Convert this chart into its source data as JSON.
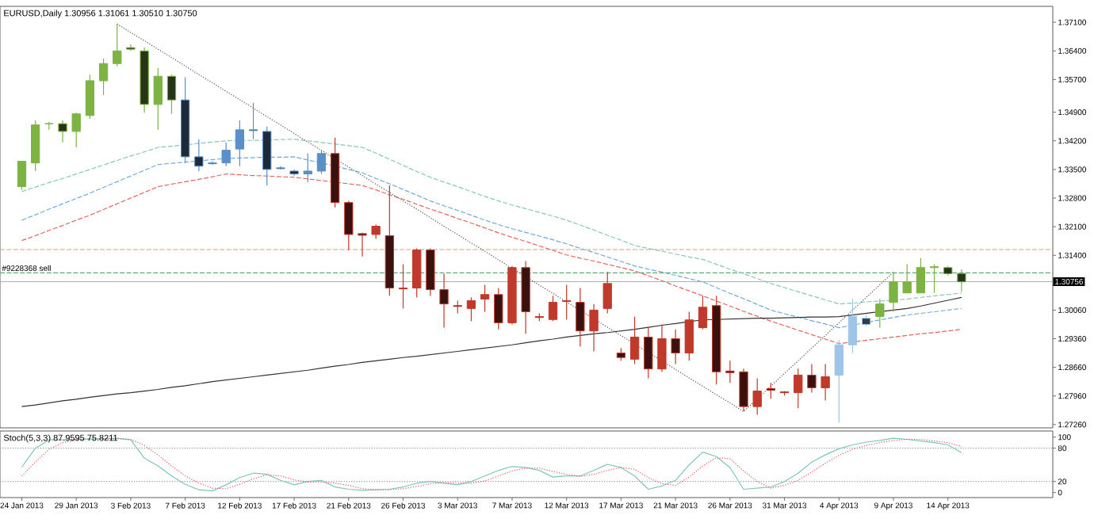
{
  "chart_data": [
    {
      "type": "candlestick",
      "title": "EURUSD,Daily 1.30956 1.31061 1.30510 1.30750",
      "categories": [
        null,
        null,
        null,
        null,
        null,
        null,
        null,
        null,
        null,
        null,
        null,
        null,
        null,
        null,
        null,
        null,
        null,
        null,
        null,
        null,
        null,
        null,
        null,
        null,
        null,
        null,
        null,
        null,
        null,
        null,
        null,
        null,
        null,
        null,
        null,
        null,
        null,
        null,
        null,
        null,
        null,
        null,
        null,
        null,
        null,
        null,
        null,
        null,
        null,
        null,
        null,
        null,
        null,
        null,
        null,
        null,
        null,
        null,
        null,
        null,
        null,
        null,
        null,
        null,
        null,
        null,
        null,
        null,
        null,
        null
      ],
      "ohlc": [
        [
          1.3308,
          1.3371,
          1.33,
          1.337
        ],
        [
          1.3366,
          1.347,
          1.3346,
          1.3459
        ],
        [
          1.3462,
          1.3466,
          1.3447,
          1.3462
        ],
        [
          1.3462,
          1.347,
          1.3416,
          1.3443
        ],
        [
          1.3443,
          1.3489,
          1.3404,
          1.3486
        ],
        [
          1.3482,
          1.3582,
          1.3474,
          1.3567
        ],
        [
          1.3567,
          1.3621,
          1.3532,
          1.3609
        ],
        [
          1.3609,
          1.3706,
          1.3602,
          1.364
        ],
        [
          1.3648,
          1.3656,
          1.364,
          1.3644
        ],
        [
          1.364,
          1.3648,
          1.3489,
          1.3509
        ],
        [
          1.3509,
          1.3598,
          1.3447,
          1.3578
        ],
        [
          1.3578,
          1.3582,
          1.3486,
          1.352
        ],
        [
          1.352,
          1.3575,
          1.3366,
          1.3381
        ],
        [
          1.3381,
          1.3424,
          1.3346,
          1.3358
        ],
        [
          1.3366,
          1.337,
          1.3362,
          1.3364
        ],
        [
          1.3366,
          1.3416,
          1.3358,
          1.3397
        ],
        [
          1.34,
          1.347,
          1.3358,
          1.3447
        ],
        [
          1.3447,
          1.3513,
          1.3424,
          1.3445
        ],
        [
          1.3443,
          1.3455,
          1.3311,
          1.335
        ],
        [
          1.3354,
          1.3358,
          1.335,
          1.3352
        ],
        [
          1.3346,
          1.335,
          1.3335,
          1.3339
        ],
        [
          1.3339,
          1.3389,
          1.3319,
          1.3346
        ],
        [
          1.3346,
          1.3397,
          1.3339,
          1.3389
        ],
        [
          1.3389,
          1.3428,
          1.3257,
          1.3269
        ],
        [
          1.3269,
          1.3273,
          1.3153,
          1.3191
        ],
        [
          1.3193,
          1.3195,
          1.3137,
          1.3189
        ],
        [
          1.3191,
          1.3215,
          1.318,
          1.3211
        ],
        [
          1.3188,
          1.3311,
          1.3041,
          1.306
        ],
        [
          1.306,
          1.3118,
          1.301,
          1.3058
        ],
        [
          1.306,
          1.3157,
          1.3037,
          1.3153
        ],
        [
          1.3153,
          1.3157,
          1.3041,
          1.3056
        ],
        [
          1.3056,
          1.3095,
          1.2963,
          1.3021
        ],
        [
          1.3017,
          1.3029,
          1.2998,
          1.3015
        ],
        [
          1.301,
          1.3037,
          1.2979,
          1.3029
        ],
        [
          1.3033,
          1.3068,
          1.3002,
          1.3044
        ],
        [
          1.3044,
          1.306,
          1.2959,
          1.2975
        ],
        [
          1.2975,
          1.3114,
          1.2971,
          1.311
        ],
        [
          1.311,
          1.3126,
          1.2948,
          1.3002
        ],
        [
          1.299,
          1.2998,
          1.2979,
          1.2988
        ],
        [
          1.2983,
          1.3041,
          1.2979,
          1.3025
        ],
        [
          1.3029,
          1.3068,
          1.2983,
          1.3027
        ],
        [
          1.3025,
          1.306,
          1.2917,
          1.2955
        ],
        [
          1.2955,
          1.3021,
          1.2905,
          1.3006
        ],
        [
          1.301,
          1.3099,
          1.2998,
          1.3071
        ],
        [
          1.2901,
          1.2913,
          1.2882,
          1.289
        ],
        [
          1.2886,
          1.299,
          1.2874,
          1.294
        ],
        [
          1.294,
          1.2963,
          1.2839,
          1.2862
        ],
        [
          1.2862,
          1.2971,
          1.2855,
          1.2936
        ],
        [
          1.2936,
          1.2959,
          1.2874,
          1.2901
        ],
        [
          1.2901,
          1.3002,
          1.2882,
          1.2982
        ],
        [
          1.2963,
          1.3041,
          1.2959,
          1.3013
        ],
        [
          1.3017,
          1.3041,
          1.2824,
          1.2855
        ],
        [
          1.2857,
          1.2882,
          1.2828,
          1.2853
        ],
        [
          1.2855,
          1.2863,
          1.2758,
          1.277
        ],
        [
          1.277,
          1.2839,
          1.275,
          1.2808
        ],
        [
          1.2814,
          1.2828,
          1.2789,
          1.281
        ],
        [
          1.2806,
          1.2808,
          1.2797,
          1.2804
        ],
        [
          1.2804,
          1.2863,
          1.2766,
          1.2847
        ],
        [
          1.2847,
          1.2874,
          1.2804,
          1.2816
        ],
        [
          1.2816,
          1.2874,
          1.2785,
          1.2843
        ],
        [
          1.2847,
          1.2932,
          1.2731,
          1.2921
        ],
        [
          1.2921,
          1.3033,
          1.2901,
          1.299
        ],
        [
          1.2986,
          1.2994,
          1.2967,
          1.2971
        ],
        [
          1.299,
          1.3033,
          1.2963,
          1.3021
        ],
        [
          1.3025,
          1.3099,
          1.3002,
          1.3075
        ],
        [
          1.3048,
          1.3118,
          1.3048,
          1.3075
        ],
        [
          1.3048,
          1.3133,
          1.3048,
          1.311
        ],
        [
          1.311,
          1.3118,
          1.3048,
          1.3112
        ],
        [
          1.311,
          1.3114,
          1.3091,
          1.3095
        ],
        [
          1.30956,
          1.31061,
          1.3051,
          1.3075
        ]
      ],
      "colors": [
        "#7cb342",
        "#7cb342",
        "#7cb342",
        "#7cb342",
        "#7cb342",
        "#7cb342",
        "#7cb342",
        "#7cb342",
        "#7cb342",
        "#7cb342",
        "#7cb342",
        "#7cb342",
        "#5b8fc7",
        "#5b8fc7",
        "#5b8fc7",
        "#5b8fc7",
        "#5b8fc7",
        "#5b8fc7",
        "#5b8fc7",
        "#5b8fc7",
        "#5b8fc7",
        "#5b8fc7",
        "#5b8fc7",
        "#c0392b",
        "#c0392b",
        "#c0392b",
        "#c0392b",
        "#c0392b",
        "#c0392b",
        "#c0392b",
        "#c0392b",
        "#c0392b",
        "#c0392b",
        "#c0392b",
        "#c0392b",
        "#c0392b",
        "#c0392b",
        "#c0392b",
        "#c0392b",
        "#c0392b",
        "#c0392b",
        "#c0392b",
        "#c0392b",
        "#c0392b",
        "#c0392b",
        "#c0392b",
        "#c0392b",
        "#c0392b",
        "#c0392b",
        "#c0392b",
        "#c0392b",
        "#c0392b",
        "#c0392b",
        "#c0392b",
        "#c0392b",
        "#c0392b",
        "#c0392b",
        "#c0392b",
        "#c0392b",
        "#c0392b",
        "#9ec5e8",
        "#9ec5e8",
        "#9ec5e8",
        "#7cb342",
        "#7cb342",
        "#7cb342",
        "#7cb342",
        "#7cb342",
        "#7cb342",
        "#7cb342"
      ],
      "series": [
        {
          "type": "line",
          "color": "#8cc4bc",
          "line_style": "dashed",
          "values": [
            1.3296,
            1.3307,
            1.3318,
            1.3328,
            1.3339,
            1.335,
            1.3361,
            1.3372,
            1.3383,
            1.3393,
            1.3404,
            1.3407,
            1.341,
            1.3414,
            1.3417,
            1.342,
            1.3421,
            1.3421,
            1.3422,
            1.3423,
            1.3424,
            1.342,
            1.3416,
            1.3412,
            1.3408,
            1.3404,
            1.339,
            1.3375,
            1.336,
            1.3345,
            1.3331,
            1.3319,
            1.3308,
            1.3296,
            1.3284,
            1.3273,
            1.3263,
            1.3254,
            1.3245,
            1.3236,
            1.3226,
            1.3214,
            1.3202,
            1.3189,
            1.3177,
            1.3164,
            1.3157,
            1.315,
            1.3143,
            1.3136,
            1.313,
            1.3118,
            1.3106,
            1.3095,
            1.3083,
            1.3071,
            1.3061,
            1.3051,
            1.3041,
            1.3031,
            1.3021,
            1.3023,
            1.3026,
            1.3028,
            1.303,
            1.3033,
            1.3037,
            1.3041,
            1.3044,
            1.3048
          ]
        },
        {
          "type": "line",
          "color": "#6fa8dc",
          "line_style": "dashed",
          "values": [
            1.3226,
            1.3239,
            1.3253,
            1.3266,
            1.3279,
            1.3292,
            1.3306,
            1.332,
            1.3334,
            1.3348,
            1.3362,
            1.3365,
            1.3368,
            1.3371,
            1.3374,
            1.3377,
            1.3378,
            1.3379,
            1.338,
            1.338,
            1.3381,
            1.3373,
            1.3366,
            1.3358,
            1.335,
            1.3342,
            1.3328,
            1.3315,
            1.3301,
            1.3287,
            1.3273,
            1.3261,
            1.325,
            1.3238,
            1.3226,
            1.3215,
            1.3205,
            1.3196,
            1.3187,
            1.3178,
            1.3168,
            1.3157,
            1.3147,
            1.3136,
            1.3125,
            1.3114,
            1.3106,
            1.3099,
            1.3091,
            1.3083,
            1.3075,
            1.3061,
            1.3047,
            1.3034,
            1.302,
            1.3006,
            1.2997,
            1.2989,
            1.298,
            1.2972,
            1.2963,
            1.2969,
            1.2976,
            1.2982,
            1.2988,
            1.2994,
            1.2998,
            1.3002,
            1.3006,
            1.301
          ]
        },
        {
          "type": "line",
          "color": "#e06666",
          "line_style": "dashed",
          "values": [
            1.3176,
            1.3188,
            1.3201,
            1.3213,
            1.3226,
            1.3238,
            1.3252,
            1.3266,
            1.328,
            1.3294,
            1.3308,
            1.3314,
            1.332,
            1.3326,
            1.3332,
            1.3339,
            1.3337,
            1.3335,
            1.3334,
            1.3332,
            1.3331,
            1.3327,
            1.3323,
            1.3319,
            1.3315,
            1.3311,
            1.33,
            1.3288,
            1.3277,
            1.3265,
            1.3253,
            1.3242,
            1.323,
            1.3219,
            1.3207,
            1.3195,
            1.3184,
            1.3174,
            1.3163,
            1.3152,
            1.3141,
            1.3133,
            1.3126,
            1.3118,
            1.311,
            1.3102,
            1.309,
            1.3078,
            1.3065,
            1.3053,
            1.3041,
            1.3028,
            1.3016,
            1.3003,
            1.2991,
            1.2979,
            1.2968,
            1.2957,
            1.2946,
            1.2935,
            1.2924,
            1.2928,
            1.2932,
            1.2936,
            1.294,
            1.2944,
            1.2948,
            1.2951,
            1.2955,
            1.2959
          ]
        },
        {
          "type": "line",
          "color": "#333333",
          "line_style": "solid",
          "values": [
            1.277,
            1.2774,
            1.2779,
            1.2784,
            1.2788,
            1.2793,
            1.2797,
            1.2801,
            1.2804,
            1.2808,
            1.2812,
            1.2817,
            1.2821,
            1.2826,
            1.2831,
            1.2835,
            1.2839,
            1.2843,
            1.2847,
            1.2851,
            1.2855,
            1.2859,
            1.2864,
            1.2869,
            1.2873,
            1.2878,
            1.2882,
            1.2886,
            1.289,
            1.2893,
            1.2897,
            1.2901,
            1.2905,
            1.2909,
            1.2913,
            1.2917,
            1.2921,
            1.2926,
            1.2931,
            1.2935,
            1.294,
            1.2944,
            1.2948,
            1.2951,
            1.2955,
            1.2959,
            1.2964,
            1.2969,
            1.2973,
            1.2978,
            1.2982,
            1.2983,
            1.2984,
            1.2985,
            1.2986,
            1.2986,
            1.2987,
            1.2988,
            1.2989,
            1.2989,
            1.299,
            1.2994,
            1.2998,
            1.3002,
            1.3006,
            1.301,
            1.3016,
            1.3023,
            1.303,
            1.3037
          ]
        },
        {
          "type": "line",
          "color": "#555555",
          "line_style": "dotted",
          "values": [
            null,
            null,
            null,
            null,
            null,
            null,
            null,
            1.3706,
            1.3685,
            1.3665,
            1.3644,
            1.3624,
            1.3603,
            1.3582,
            1.3562,
            1.3541,
            1.3521,
            1.35,
            1.3479,
            1.3459,
            1.3438,
            1.3417,
            1.3397,
            1.3376,
            1.3356,
            1.3335,
            1.3314,
            1.3294,
            1.3273,
            1.3253,
            1.3232,
            1.3211,
            1.3191,
            1.317,
            1.315,
            1.3129,
            1.3108,
            1.3088,
            1.3067,
            1.3047,
            1.3026,
            1.3005,
            1.2985,
            1.2964,
            1.2944,
            1.2923,
            1.2902,
            1.2882,
            1.2861,
            1.284,
            1.282,
            1.2799,
            1.2779,
            1.2758,
            1.2789,
            1.282,
            1.2851,
            1.2882,
            1.2913,
            1.2944,
            1.2975,
            1.3006,
            1.3037,
            1.3068,
            1.3099,
            null,
            null,
            null,
            null,
            null
          ]
        }
      ],
      "ylim": [
        1.2718,
        1.3749
      ],
      "yticks": [
        {
          "value": 1.371,
          "label": "1.37100"
        },
        {
          "value": 1.364,
          "label": "1.36400"
        },
        {
          "value": 1.357,
          "label": "1.35700"
        },
        {
          "value": 1.349,
          "label": "1.34900"
        },
        {
          "value": 1.342,
          "label": "1.34200"
        },
        {
          "value": 1.335,
          "label": "1.33500"
        },
        {
          "value": 1.328,
          "label": "1.32800"
        },
        {
          "value": 1.321,
          "label": "1.32100"
        },
        {
          "value": 1.314,
          "label": "1.31400"
        },
        {
          "value": 1.3006,
          "label": "1.30060"
        },
        {
          "value": 1.2936,
          "label": "1.29360"
        },
        {
          "value": 1.2866,
          "label": "1.28660"
        },
        {
          "value": 1.2796,
          "label": "1.27960"
        },
        {
          "value": 1.2726,
          "label": "1.27260"
        }
      ],
      "ref_lines": [
        {
          "axis": "y",
          "value": 1.3154,
          "color": "#e09a8a",
          "line_style": "dashed"
        },
        {
          "axis": "y",
          "value": 1.3097,
          "color": "#5fae6f",
          "line_style": "dashed",
          "label": "#9228368 sell"
        },
        {
          "axis": "y",
          "value": 1.30756,
          "color": "#b0b0b0",
          "line_style": "solid",
          "label": "1.30756"
        }
      ],
      "tick_labels": "y"
    },
    {
      "type": "line",
      "title": "Stoch(5,3,3) 87.9595 75.8211",
      "categories": [
        "24 Jan 2013",
        null,
        null,
        null,
        "29 Jan 2013",
        null,
        null,
        null,
        "3 Feb 2013",
        null,
        null,
        null,
        "7 Feb 2013",
        null,
        null,
        null,
        "12 Feb 2013",
        null,
        null,
        null,
        "17 Feb 2013",
        null,
        null,
        null,
        "21 Feb 2013",
        null,
        null,
        null,
        "26 Feb 2013",
        null,
        null,
        null,
        "3 Mar 2013",
        null,
        null,
        null,
        "7 Mar 2013",
        null,
        null,
        null,
        "12 Mar 2013",
        null,
        null,
        null,
        "17 Mar 2013",
        null,
        null,
        null,
        "21 Mar 2013",
        null,
        null,
        null,
        "26 Mar 2013",
        null,
        null,
        null,
        "31 Mar 2013",
        null,
        null,
        null,
        "4 Apr 2013",
        null,
        null,
        null,
        "9 Apr 2013",
        null,
        null,
        null,
        "14 Apr 2013",
        null
      ],
      "series": [
        {
          "color": "#7fc4bd",
          "line_style": "solid",
          "values": [
            46,
            80,
            95,
            95,
            96,
            97,
            97,
            98,
            95,
            62,
            48,
            30,
            15,
            5,
            3,
            14,
            27,
            35,
            33,
            22,
            14,
            20,
            22,
            10,
            6,
            4,
            5,
            6,
            10,
            17,
            20,
            17,
            14,
            20,
            30,
            40,
            47,
            45,
            40,
            28,
            30,
            30,
            40,
            51,
            45,
            30,
            6,
            12,
            22,
            50,
            73,
            65,
            45,
            6,
            8,
            10,
            20,
            35,
            55,
            68,
            79,
            86,
            91,
            94,
            98,
            96,
            93,
            90,
            86,
            72
          ]
        },
        {
          "color": "#e06060",
          "line_style": "dotted",
          "values": [
            30,
            55,
            78,
            90,
            95,
            96,
            97,
            97,
            96,
            85,
            68,
            48,
            30,
            17,
            8,
            7,
            15,
            25,
            32,
            30,
            23,
            19,
            19,
            17,
            13,
            7,
            5,
            5,
            7,
            11,
            16,
            18,
            17,
            17,
            21,
            30,
            39,
            44,
            44,
            38,
            33,
            29,
            33,
            40,
            45,
            42,
            27,
            16,
            13,
            28,
            48,
            63,
            61,
            39,
            20,
            8,
            13,
            22,
            37,
            53,
            67,
            78,
            85,
            90,
            94,
            96,
            96,
            93,
            90,
            83
          ]
        }
      ],
      "ylim": [
        -9,
        111
      ],
      "yticks": [
        0,
        20,
        80,
        100
      ],
      "ref_lines": [
        {
          "axis": "y",
          "value": 20,
          "color": "#999999",
          "line_style": "dotted"
        },
        {
          "axis": "y",
          "value": 80,
          "color": "#999999",
          "line_style": "dotted"
        }
      ]
    }
  ]
}
